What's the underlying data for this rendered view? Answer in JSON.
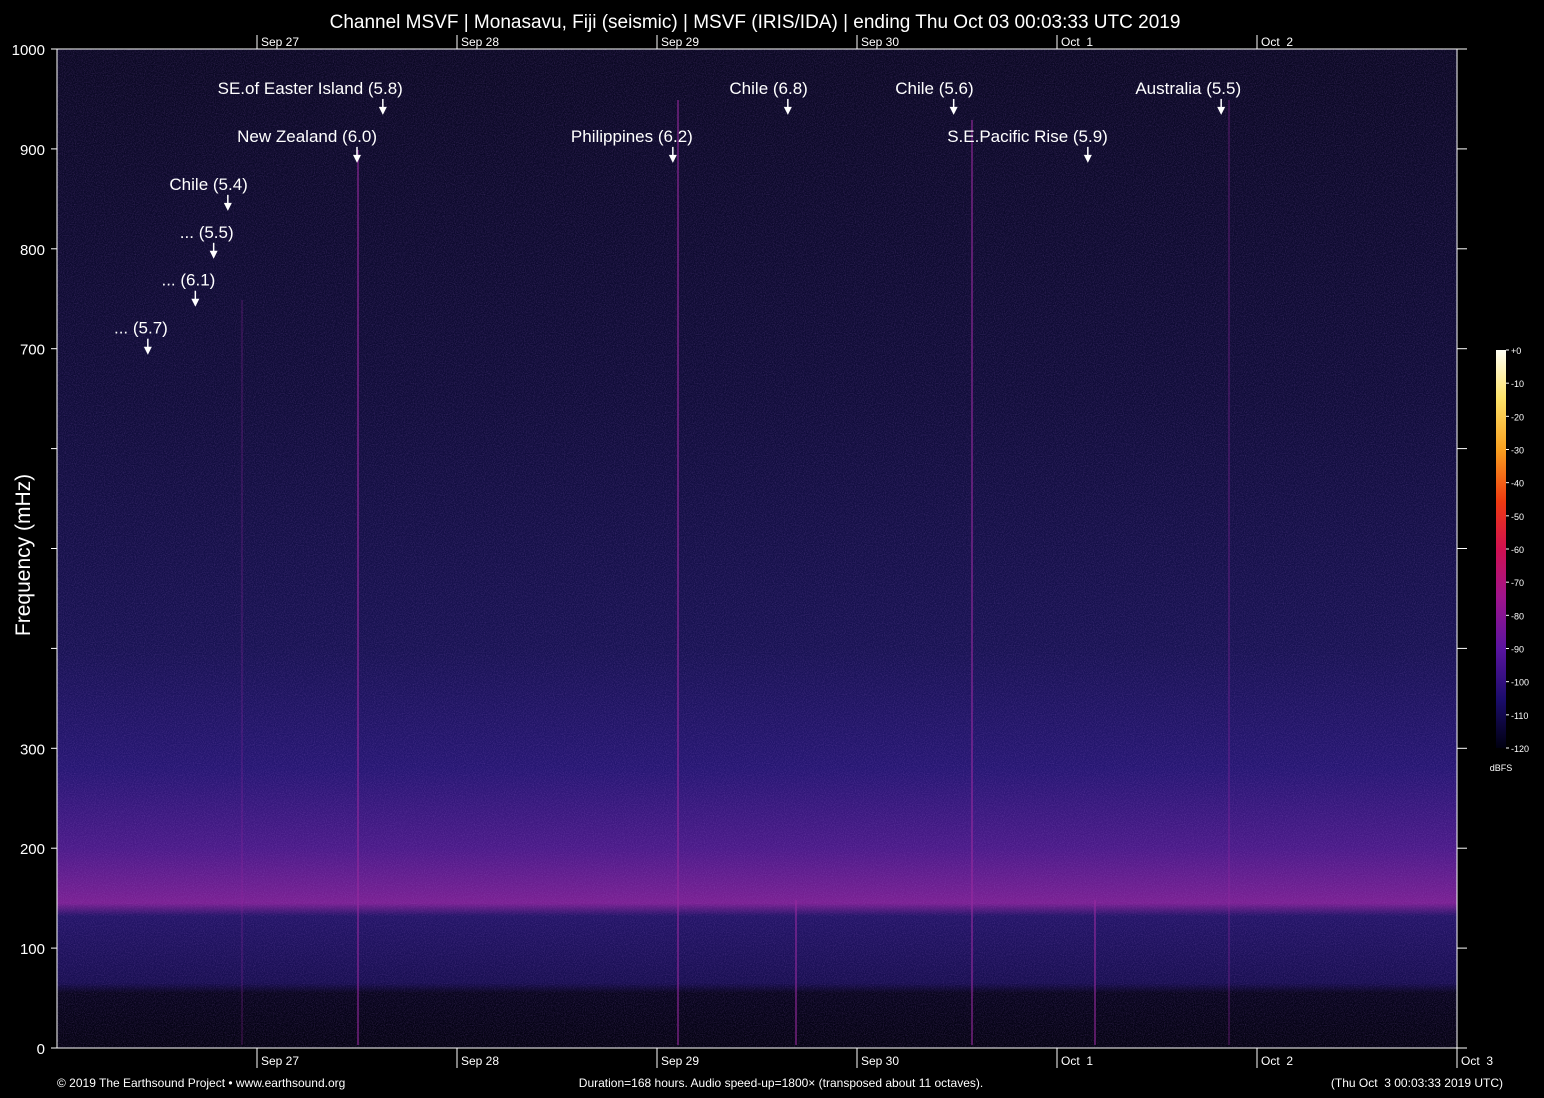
{
  "chart_data": {
    "type": "spectrogram",
    "title": "Channel MSVF | Monasavu, Fiji (seismic) | MSVF (IRIS/IDA) | ending Thu Oct 03 00:03:33 UTC 2019",
    "ylabel": "Frequency (mHz)",
    "ylim": [
      0,
      1000
    ],
    "yticks": [
      0,
      100,
      200,
      300,
      {
        "value": 400,
        "label": null
      },
      {
        "value": 500,
        "label": null
      },
      {
        "value": 600,
        "label": null
      },
      700,
      800,
      900,
      1000
    ],
    "xlim": [
      0,
      168
    ],
    "xticks": [
      {
        "value": 24,
        "label": "Sep 27"
      },
      {
        "value": 48,
        "label": "Sep 28"
      },
      {
        "value": 72,
        "label": "Sep 29"
      },
      {
        "value": 96,
        "label": "Sep 30"
      },
      {
        "value": 120,
        "label": "Oct  1"
      },
      {
        "value": 144,
        "label": "Oct  2"
      },
      {
        "value": 168,
        "label": "Oct  3"
      }
    ],
    "annotations": [
      {
        "text": "... (5.7)",
        "x": 10.9,
        "y": 694
      },
      {
        "text": "... (6.1)",
        "x": 16.6,
        "y": 742
      },
      {
        "text": "... (5.5)",
        "x": 18.8,
        "y": 790
      },
      {
        "text": "Chile (5.4)",
        "x": 20.5,
        "y": 838
      },
      {
        "text": "New Zealand (6.0)",
        "x": 36.0,
        "y": 886
      },
      {
        "text": "SE.of Easter Island (5.8)",
        "x": 39.1,
        "y": 934
      },
      {
        "text": "Philippines (6.2)",
        "x": 73.9,
        "y": 886
      },
      {
        "text": "Chile (6.8)",
        "x": 87.7,
        "y": 934
      },
      {
        "text": "Chile (5.6)",
        "x": 107.6,
        "y": 934
      },
      {
        "text": "S.E.Pacific Rise (5.9)",
        "x": 123.7,
        "y": 886
      },
      {
        "text": "Australia (5.5)",
        "x": 139.7,
        "y": 934
      }
    ],
    "colorbar": {
      "label": "dBFS",
      "lim": [
        -120,
        0
      ],
      "ticks": [
        {
          "value": 0,
          "label": "+0"
        },
        -10,
        -20,
        -30,
        -40,
        -50,
        -60,
        -70,
        -80,
        -90,
        -100,
        -110,
        -120
      ]
    },
    "footer": {
      "left": "© 2019 The Earthsound Project • www.earthsound.org",
      "center": "Duration=168 hours. Audio speed-up=1800× (transposed about 11 octaves).",
      "right": "(Thu Oct  3 00:03:33 2019 UTC)"
    }
  }
}
